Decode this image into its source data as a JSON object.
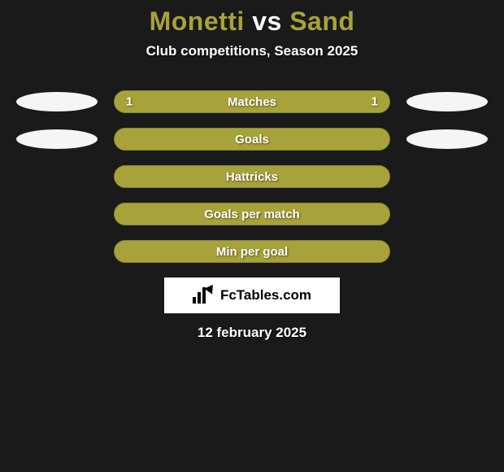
{
  "background_color": "#1a1a1a",
  "title": {
    "player1": "Monetti",
    "vs": "vs",
    "player2": "Sand",
    "player1_color": "#a8a23a",
    "vs_color": "#ffffff",
    "player2_color": "#a8a23a"
  },
  "subtitle": "Club competitions, Season 2025",
  "avatar_bg": "#f5f5f5",
  "bars": [
    {
      "label": "Matches",
      "left_value": "1",
      "right_value": "1",
      "base_color": "#a8a23a",
      "left_width_pct": 50,
      "right_width_pct": 50,
      "show_avatars": true
    },
    {
      "label": "Goals",
      "left_value": "",
      "right_value": "",
      "base_color": "#a8a23a",
      "left_width_pct": 0,
      "right_width_pct": 0,
      "show_avatars": true
    },
    {
      "label": "Hattricks",
      "left_value": "",
      "right_value": "",
      "base_color": "#a8a23a",
      "left_width_pct": 0,
      "right_width_pct": 0,
      "show_avatars": false
    },
    {
      "label": "Goals per match",
      "left_value": "",
      "right_value": "",
      "base_color": "#a8a23a",
      "left_width_pct": 0,
      "right_width_pct": 0,
      "show_avatars": false
    },
    {
      "label": "Min per goal",
      "left_value": "",
      "right_value": "",
      "base_color": "#a8a23a",
      "left_width_pct": 0,
      "right_width_pct": 0,
      "show_avatars": false
    }
  ],
  "branding": "FcTables.com",
  "date": "12 february 2025",
  "left_color": "#a8a23a",
  "right_color": "#a8a23a",
  "bar_border_color": "#8a8530"
}
